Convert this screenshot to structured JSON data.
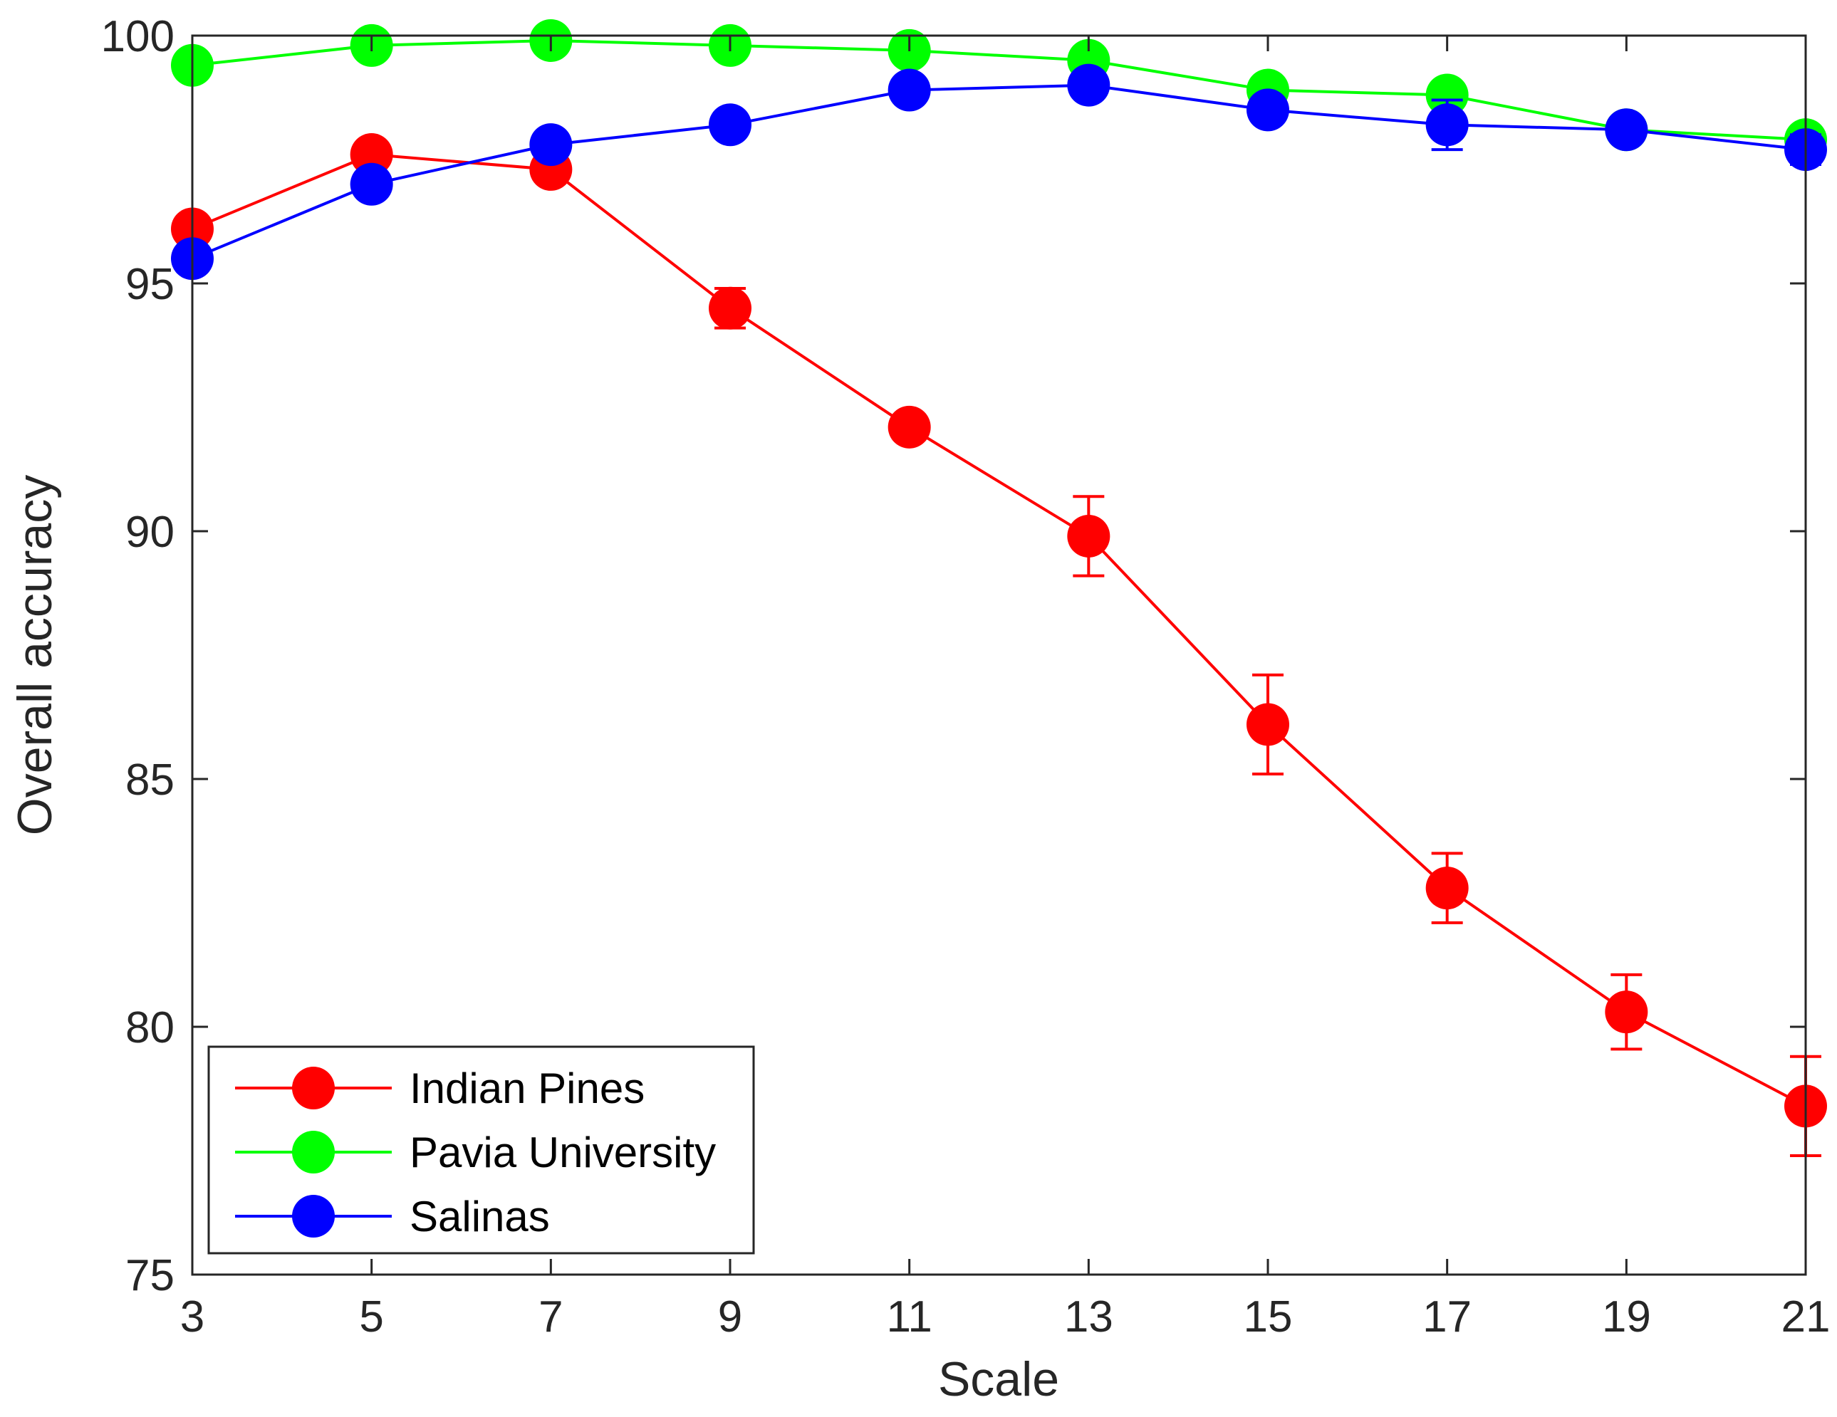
{
  "chart_data": {
    "type": "line",
    "title": "",
    "xlabel": "Scale",
    "ylabel": "Overall accuracy",
    "x": [
      3,
      5,
      7,
      9,
      11,
      13,
      15,
      17,
      19,
      21
    ],
    "xlim": [
      3,
      21
    ],
    "ylim": [
      75,
      100
    ],
    "xticks": [
      "3",
      "5",
      "7",
      "9",
      "11",
      "13",
      "15",
      "17",
      "19",
      "21"
    ],
    "yticks": [
      "75",
      "80",
      "85",
      "90",
      "95",
      "100"
    ],
    "grid": false,
    "legend_position": "bottom-left",
    "series": [
      {
        "name": "Indian Pines",
        "color": "#ff0000",
        "values": [
          96.1,
          97.6,
          97.3,
          94.5,
          92.1,
          89.9,
          86.1,
          82.8,
          80.3,
          78.4
        ],
        "errors": [
          0.2,
          0.15,
          0.2,
          0.4,
          0.2,
          0.8,
          1.0,
          0.7,
          0.75,
          1.0
        ]
      },
      {
        "name": "Pavia University",
        "color": "#00ff00",
        "values": [
          99.4,
          99.8,
          99.9,
          99.8,
          99.7,
          99.5,
          98.9,
          98.8,
          98.1,
          97.9
        ],
        "errors": [
          0.05,
          0.05,
          0.05,
          0.05,
          0.05,
          0.05,
          0.1,
          0.1,
          0.1,
          0.1
        ]
      },
      {
        "name": "Salinas",
        "color": "#0000ff",
        "values": [
          95.5,
          97.0,
          97.8,
          98.2,
          98.9,
          99.0,
          98.5,
          98.2,
          98.1,
          97.7
        ],
        "errors": [
          0.1,
          0.1,
          0.1,
          0.1,
          0.1,
          0.1,
          0.1,
          0.5,
          0.1,
          0.3
        ]
      }
    ]
  }
}
